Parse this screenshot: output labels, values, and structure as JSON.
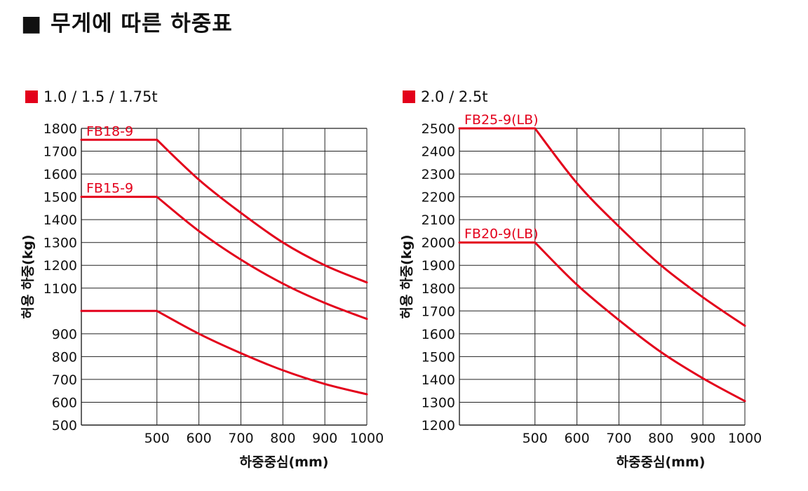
{
  "page_title": "■ 무게에 따른 하중표",
  "colors": {
    "series": "#e3001b",
    "grid": "#222222"
  },
  "chart_data": [
    {
      "type": "line",
      "title": "1.0 / 1.5 / 1.75t",
      "xlabel": "하중중심(mm)",
      "ylabel": "허용 하중(kg)",
      "xlim": [
        320,
        1000
      ],
      "ylim": [
        500,
        1800
      ],
      "grid": true,
      "x_ticks": [
        500,
        600,
        700,
        800,
        900,
        1000
      ],
      "y_ticks": [
        500,
        600,
        700,
        800,
        900,
        1100,
        1200,
        1300,
        1400,
        1500,
        1600,
        1700,
        1800
      ],
      "x_gridlines": [
        500,
        600,
        700,
        800,
        900,
        1000
      ],
      "y_gridlines": [
        600,
        700,
        800,
        900,
        1000,
        1100,
        1200,
        1300,
        1400,
        1500,
        1600,
        1700
      ],
      "series": [
        {
          "name": "FB18-9",
          "x": [
            320,
            500,
            600,
            700,
            800,
            900,
            1000
          ],
          "y": [
            1750,
            1750,
            1575,
            1430,
            1300,
            1200,
            1125
          ]
        },
        {
          "name": "FB15-9",
          "x": [
            320,
            500,
            600,
            700,
            800,
            900,
            1000
          ],
          "y": [
            1500,
            1500,
            1350,
            1225,
            1120,
            1035,
            965
          ]
        },
        {
          "x": [
            320,
            500,
            600,
            700,
            800,
            900,
            1000
          ],
          "y": [
            1000,
            1000,
            900,
            815,
            740,
            680,
            635
          ]
        }
      ]
    },
    {
      "type": "line",
      "title": "2.0 / 2.5t",
      "xlabel": "하중중심(mm)",
      "ylabel": "허용 하중(kg)",
      "xlim": [
        320,
        1000
      ],
      "ylim": [
        1200,
        2500
      ],
      "grid": true,
      "x_ticks": [
        500,
        600,
        700,
        800,
        900,
        1000
      ],
      "y_ticks": [
        1200,
        1300,
        1400,
        1500,
        1600,
        1700,
        1800,
        1900,
        2000,
        2100,
        2200,
        2300,
        2400,
        2500
      ],
      "x_gridlines": [
        500,
        600,
        700,
        800,
        900,
        1000
      ],
      "y_gridlines": [
        1300,
        1400,
        1500,
        1600,
        1700,
        1800,
        1900,
        2000,
        2100,
        2200,
        2300,
        2400
      ],
      "series": [
        {
          "name": "FB25-9(LB)",
          "x": [
            320,
            500,
            600,
            700,
            800,
            900,
            1000
          ],
          "y": [
            2500,
            2500,
            2260,
            2070,
            1900,
            1760,
            1635
          ]
        },
        {
          "name": "FB20-9(LB)",
          "x": [
            320,
            500,
            600,
            700,
            800,
            900,
            1000
          ],
          "y": [
            2000,
            2000,
            1815,
            1660,
            1520,
            1405,
            1305
          ]
        }
      ]
    }
  ]
}
